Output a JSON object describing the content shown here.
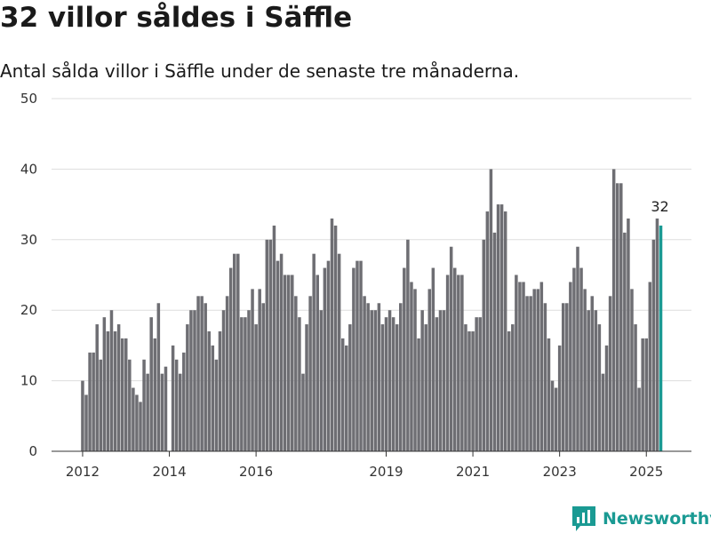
{
  "header": {
    "title": "32 villor såldes i Säffle",
    "subtitle": "Antal sålda villor i Säffle under de senaste tre månaderna."
  },
  "brand": {
    "name": "Newsworthy",
    "icon": "newsworthy-logo-icon"
  },
  "colors": {
    "bar": "#6e6e73",
    "highlight": "#1a9a93",
    "grid": "#dddddd",
    "axis": "#333333"
  },
  "chart_data": {
    "type": "bar",
    "title": "32 villor såldes i Säffle",
    "subtitle": "Antal sålda villor i Säffle under de senaste tre månaderna.",
    "xlabel": "",
    "ylabel": "",
    "ylim": [
      0,
      50
    ],
    "yticks": [
      0,
      10,
      20,
      30,
      40,
      50
    ],
    "xticks": [
      "2012",
      "2014",
      "2016",
      "2019",
      "2021",
      "2023",
      "2025"
    ],
    "grid": true,
    "x_start": "2012-01",
    "bar_unit": "month",
    "values": [
      10,
      8,
      14,
      14,
      18,
      13,
      19,
      17,
      20,
      17,
      18,
      16,
      16,
      13,
      9,
      8,
      7,
      13,
      11,
      19,
      16,
      21,
      11,
      12,
      null,
      15,
      13,
      11,
      14,
      18,
      20,
      20,
      22,
      22,
      21,
      17,
      15,
      13,
      17,
      20,
      22,
      26,
      28,
      28,
      19,
      19,
      20,
      23,
      18,
      23,
      21,
      30,
      30,
      32,
      27,
      28,
      25,
      25,
      25,
      22,
      19,
      11,
      18,
      22,
      28,
      25,
      20,
      26,
      27,
      33,
      32,
      28,
      16,
      15,
      18,
      26,
      27,
      27,
      22,
      21,
      20,
      20,
      21,
      18,
      19,
      20,
      19,
      18,
      21,
      26,
      30,
      24,
      23,
      16,
      20,
      18,
      23,
      26,
      19,
      20,
      20,
      25,
      29,
      26,
      25,
      25,
      18,
      17,
      17,
      19,
      19,
      30,
      34,
      40,
      31,
      35,
      35,
      34,
      17,
      18,
      25,
      24,
      24,
      22,
      22,
      23,
      23,
      24,
      21,
      16,
      10,
      9,
      15,
      21,
      21,
      24,
      26,
      29,
      26,
      23,
      20,
      22,
      20,
      18,
      11,
      15,
      22,
      40,
      38,
      38,
      31,
      33,
      23,
      18,
      9,
      16,
      16,
      24,
      30,
      33,
      32
    ],
    "highlight_last": true,
    "annotations": [
      {
        "label": "32"
      }
    ]
  }
}
